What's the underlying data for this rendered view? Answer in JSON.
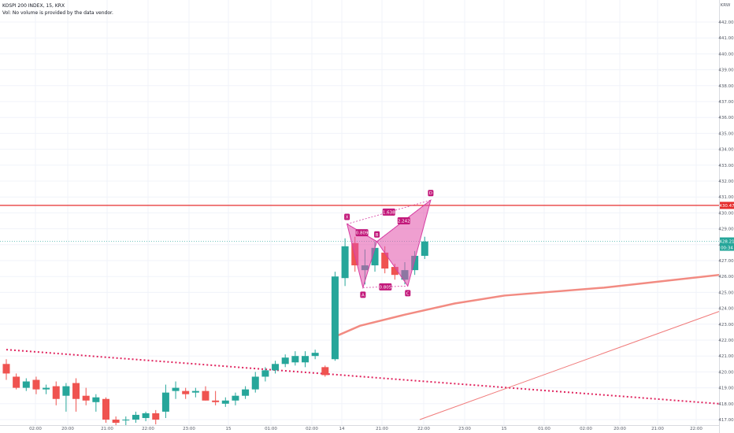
{
  "legend": {
    "symbol_line": "KOSPI 200 INDEX, 15, KRX",
    "volume_note": "Vol: No volume is provided by the data vendor."
  },
  "chart_data": {
    "type": "candlestick",
    "currency": "KRW",
    "ylim": [
      417.0,
      442.0
    ],
    "y_ticks": [
      "442.00",
      "441.00",
      "440.00",
      "439.00",
      "438.00",
      "437.00",
      "436.00",
      "435.00",
      "434.00",
      "433.00",
      "432.00",
      "431.00",
      "430.00",
      "429.00",
      "428.00",
      "427.00",
      "426.00",
      "425.00",
      "424.00",
      "423.00",
      "422.00",
      "421.00",
      "420.00",
      "419.00",
      "418.00",
      "417.00"
    ],
    "x_ticks": [
      "02:00",
      "20:00",
      "21:00",
      "22:00",
      "23:00",
      "15",
      "01:00",
      "02:00",
      "14",
      "21:00",
      "22:00",
      "23:00",
      "15",
      "01:00",
      "02:00",
      "20:00",
      "21:00",
      "22:00"
    ],
    "candles": [
      {
        "o": 420.5,
        "h": 420.8,
        "l": 419.5,
        "c": 419.9
      },
      {
        "o": 419.7,
        "h": 419.9,
        "l": 418.9,
        "c": 419.0
      },
      {
        "o": 419.0,
        "h": 419.6,
        "l": 418.8,
        "c": 419.4
      },
      {
        "o": 419.5,
        "h": 419.7,
        "l": 418.6,
        "c": 418.9
      },
      {
        "o": 418.9,
        "h": 419.2,
        "l": 418.6,
        "c": 419.0
      },
      {
        "o": 419.1,
        "h": 419.4,
        "l": 417.9,
        "c": 418.3
      },
      {
        "o": 418.5,
        "h": 419.3,
        "l": 417.5,
        "c": 419.1
      },
      {
        "o": 419.3,
        "h": 419.6,
        "l": 417.5,
        "c": 418.3
      },
      {
        "o": 418.5,
        "h": 419.0,
        "l": 417.9,
        "c": 418.2
      },
      {
        "o": 418.1,
        "h": 418.6,
        "l": 417.5,
        "c": 418.4
      },
      {
        "o": 418.3,
        "h": 418.4,
        "l": 416.8,
        "c": 417.0
      },
      {
        "o": 417.0,
        "h": 417.2,
        "l": 416.6,
        "c": 416.8
      },
      {
        "o": 417.0,
        "h": 417.2,
        "l": 416.6,
        "c": 417.0
      },
      {
        "o": 417.0,
        "h": 417.5,
        "l": 416.8,
        "c": 417.3
      },
      {
        "o": 417.1,
        "h": 417.5,
        "l": 416.9,
        "c": 417.4
      },
      {
        "o": 417.4,
        "h": 417.6,
        "l": 416.7,
        "c": 417.0
      },
      {
        "o": 417.5,
        "h": 419.2,
        "l": 417.1,
        "c": 418.7
      },
      {
        "o": 418.8,
        "h": 419.4,
        "l": 418.3,
        "c": 419.0
      },
      {
        "o": 418.8,
        "h": 419.0,
        "l": 418.3,
        "c": 418.6
      },
      {
        "o": 418.7,
        "h": 419.0,
        "l": 418.4,
        "c": 418.8
      },
      {
        "o": 418.8,
        "h": 419.1,
        "l": 418.2,
        "c": 418.2
      },
      {
        "o": 418.2,
        "h": 418.8,
        "l": 417.9,
        "c": 418.1
      },
      {
        "o": 418.0,
        "h": 418.4,
        "l": 417.8,
        "c": 418.2
      },
      {
        "o": 418.2,
        "h": 418.7,
        "l": 417.9,
        "c": 418.5
      },
      {
        "o": 418.5,
        "h": 419.1,
        "l": 418.3,
        "c": 418.9
      },
      {
        "o": 418.9,
        "h": 420.0,
        "l": 418.7,
        "c": 419.7
      },
      {
        "o": 419.7,
        "h": 420.3,
        "l": 419.4,
        "c": 420.1
      },
      {
        "o": 420.1,
        "h": 420.7,
        "l": 419.9,
        "c": 420.5
      },
      {
        "o": 420.5,
        "h": 421.1,
        "l": 420.3,
        "c": 420.9
      },
      {
        "o": 420.6,
        "h": 421.3,
        "l": 420.4,
        "c": 421.0
      },
      {
        "o": 420.6,
        "h": 421.3,
        "l": 420.3,
        "c": 421.0
      },
      {
        "o": 421.0,
        "h": 421.4,
        "l": 420.8,
        "c": 421.2
      },
      {
        "o": 420.3,
        "h": 420.4,
        "l": 419.7,
        "c": 419.8
      },
      {
        "o": 420.8,
        "h": 426.3,
        "l": 420.7,
        "c": 426.0
      },
      {
        "o": 425.9,
        "h": 428.4,
        "l": 425.4,
        "c": 427.9
      },
      {
        "o": 428.1,
        "h": 428.5,
        "l": 426.3,
        "c": 426.7
      },
      {
        "o": 426.4,
        "h": 427.7,
        "l": 425.5,
        "c": 426.7
      },
      {
        "o": 426.7,
        "h": 428.2,
        "l": 426.3,
        "c": 427.8
      },
      {
        "o": 427.5,
        "h": 427.9,
        "l": 426.2,
        "c": 426.5
      },
      {
        "o": 426.6,
        "h": 426.8,
        "l": 425.8,
        "c": 426.1
      },
      {
        "o": 425.8,
        "h": 426.9,
        "l": 425.5,
        "c": 426.4
      },
      {
        "o": 426.4,
        "h": 427.6,
        "l": 426.1,
        "c": 427.3
      },
      {
        "o": 427.3,
        "h": 428.5,
        "l": 427.1,
        "c": 428.2
      }
    ],
    "resistance_level": 430.47,
    "last_price": "428.21",
    "countdown": "00:34",
    "current_price": 428.21,
    "harmonic_pattern": {
      "points": [
        {
          "label": "X",
          "t": 34.2,
          "v": 429.3
        },
        {
          "label": "A",
          "t": 35.8,
          "v": 425.3
        },
        {
          "label": "B",
          "t": 37.2,
          "v": 428.2
        },
        {
          "label": "C",
          "t": 40.3,
          "v": 425.4
        },
        {
          "label": "D",
          "t": 42.6,
          "v": 430.8
        }
      ],
      "ratios": [
        "0.809",
        "0.805",
        "1.638",
        "2.242"
      ]
    },
    "moving_average": [
      [
        33.3,
        422.3
      ],
      [
        35.5,
        422.9
      ],
      [
        40.0,
        423.6
      ],
      [
        45.0,
        424.3
      ],
      [
        50.0,
        424.8
      ],
      [
        60.0,
        425.3
      ],
      [
        73.0,
        426.1
      ]
    ],
    "dotted_trendline": [
      [
        0.0,
        421.4
      ],
      [
        73.0,
        418.0
      ]
    ],
    "thin_trendline": [
      [
        41.5,
        417.0
      ],
      [
        73.0,
        423.8
      ]
    ]
  }
}
